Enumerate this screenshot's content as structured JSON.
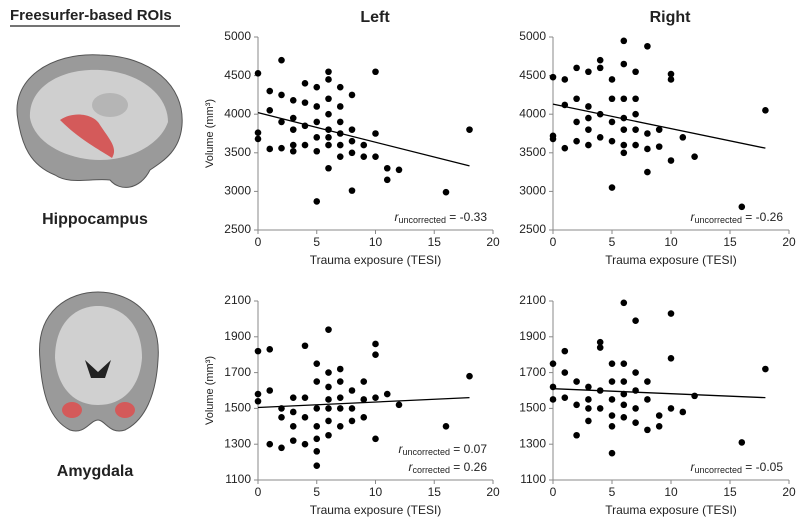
{
  "header": {
    "title": "Freesurfer-based ROIs"
  },
  "column_labels": [
    "Left",
    "Right"
  ],
  "row_labels": [
    "Hippocampus",
    "Amygdala"
  ],
  "chart_data": [
    {
      "type": "scatter",
      "xlabel": "Trauma exposure (TESI)",
      "ylabel": "Volume (mm³)",
      "color": "#000000",
      "xlim": [
        0,
        20
      ],
      "xticks": [
        0,
        5,
        10,
        15,
        20
      ],
      "ylim": [
        2500,
        5000
      ],
      "yticks": [
        2500,
        3000,
        3500,
        4000,
        4500,
        5000
      ],
      "x": [
        0,
        0,
        0,
        1,
        1,
        1,
        2,
        2,
        2,
        2,
        3,
        3,
        3,
        3,
        3,
        4,
        4,
        4,
        4,
        5,
        5,
        5,
        5,
        5,
        5,
        6,
        6,
        6,
        6,
        6,
        6,
        6,
        6,
        7,
        7,
        7,
        7,
        7,
        7,
        8,
        8,
        8,
        8,
        8,
        9,
        9,
        10,
        10,
        10,
        11,
        11,
        12,
        16,
        18
      ],
      "values": [
        4530,
        3760,
        3680,
        4300,
        4050,
        3550,
        4700,
        4250,
        3900,
        3560,
        4180,
        3950,
        3800,
        3600,
        3520,
        4400,
        4150,
        3850,
        3600,
        4350,
        4100,
        3900,
        3700,
        3520,
        2870,
        4550,
        4450,
        4200,
        4000,
        3800,
        3700,
        3600,
        3300,
        4350,
        4100,
        3900,
        3750,
        3600,
        3450,
        4250,
        3800,
        3650,
        3500,
        3010,
        3600,
        3450,
        4550,
        3750,
        3450,
        3150,
        3300,
        3280,
        2990,
        3800
      ],
      "fit": {
        "x": [
          0,
          18
        ],
        "y": [
          4020,
          3330
        ]
      },
      "annotations": [
        {
          "symbol": "r",
          "subscript": "uncorrected",
          "text": " = -0.33"
        }
      ]
    },
    {
      "type": "scatter",
      "xlabel": "Trauma exposure (TESI)",
      "color": "#000000",
      "xlim": [
        0,
        20
      ],
      "xticks": [
        0,
        5,
        10,
        15,
        20
      ],
      "ylim": [
        2500,
        5000
      ],
      "yticks": [
        2500,
        3000,
        3500,
        4000,
        4500,
        5000
      ],
      "x": [
        0,
        0,
        0,
        1,
        1,
        1,
        2,
        2,
        2,
        2,
        3,
        3,
        3,
        3,
        3,
        4,
        4,
        4,
        4,
        5,
        5,
        5,
        5,
        5,
        6,
        6,
        6,
        6,
        6,
        6,
        6,
        7,
        7,
        7,
        7,
        7,
        8,
        8,
        8,
        8,
        9,
        9,
        10,
        10,
        10,
        11,
        12,
        16,
        18
      ],
      "values": [
        4480,
        3720,
        3680,
        4450,
        4120,
        3560,
        4600,
        4200,
        3900,
        3650,
        4550,
        4100,
        3950,
        3800,
        3600,
        4700,
        4600,
        4000,
        3700,
        4450,
        4200,
        3900,
        3650,
        3050,
        4950,
        4650,
        4200,
        3950,
        3800,
        3600,
        3500,
        4550,
        4200,
        4000,
        3800,
        3600,
        4880,
        3750,
        3550,
        3250,
        3800,
        3580,
        4520,
        4450,
        3400,
        3700,
        3450,
        2800,
        4050
      ],
      "fit": {
        "x": [
          0,
          18
        ],
        "y": [
          4130,
          3560
        ]
      },
      "annotations": [
        {
          "symbol": "r",
          "subscript": "uncorrected",
          "text": " = -0.26"
        }
      ]
    },
    {
      "type": "scatter",
      "xlabel": "Trauma exposure (TESI)",
      "ylabel": "Volume (mm³)",
      "color": "#000000",
      "xlim": [
        0,
        20
      ],
      "xticks": [
        0,
        5,
        10,
        15,
        20
      ],
      "ylim": [
        1100,
        2100
      ],
      "yticks": [
        1100,
        1300,
        1500,
        1700,
        1900,
        2100
      ],
      "x": [
        0,
        0,
        0,
        1,
        1,
        1,
        2,
        2,
        2,
        3,
        3,
        3,
        3,
        4,
        4,
        4,
        4,
        5,
        5,
        5,
        5,
        5,
        5,
        5,
        6,
        6,
        6,
        6,
        6,
        6,
        6,
        7,
        7,
        7,
        7,
        7,
        8,
        8,
        8,
        9,
        9,
        9,
        10,
        10,
        10,
        10,
        11,
        12,
        16,
        18
      ],
      "values": [
        1820,
        1580,
        1540,
        1830,
        1600,
        1300,
        1500,
        1450,
        1280,
        1560,
        1480,
        1400,
        1320,
        1850,
        1560,
        1450,
        1300,
        1750,
        1650,
        1500,
        1400,
        1330,
        1260,
        1180,
        1940,
        1700,
        1620,
        1550,
        1500,
        1430,
        1350,
        1720,
        1650,
        1560,
        1500,
        1400,
        1600,
        1500,
        1430,
        1650,
        1550,
        1450,
        1860,
        1800,
        1560,
        1330,
        1580,
        1520,
        1400,
        1680
      ],
      "fit": {
        "x": [
          0,
          18
        ],
        "y": [
          1505,
          1560
        ]
      },
      "annotations": [
        {
          "symbol": "r",
          "subscript": "uncorrected",
          "text": " = 0.07"
        },
        {
          "symbol": "r",
          "subscript": "corrected",
          "text": " = 0.26"
        }
      ]
    },
    {
      "type": "scatter",
      "xlabel": "Trauma exposure (TESI)",
      "color": "#000000",
      "xlim": [
        0,
        20
      ],
      "xticks": [
        0,
        5,
        10,
        15,
        20
      ],
      "ylim": [
        1100,
        2100
      ],
      "yticks": [
        1100,
        1300,
        1500,
        1700,
        1900,
        2100
      ],
      "x": [
        0,
        0,
        0,
        1,
        1,
        1,
        2,
        2,
        2,
        3,
        3,
        3,
        3,
        4,
        4,
        4,
        4,
        5,
        5,
        5,
        5,
        5,
        5,
        6,
        6,
        6,
        6,
        6,
        6,
        7,
        7,
        7,
        7,
        7,
        8,
        8,
        8,
        9,
        9,
        10,
        10,
        10,
        11,
        12,
        16,
        18
      ],
      "values": [
        1750,
        1620,
        1550,
        1820,
        1700,
        1560,
        1650,
        1520,
        1350,
        1620,
        1550,
        1500,
        1430,
        1870,
        1840,
        1600,
        1500,
        1750,
        1650,
        1550,
        1460,
        1400,
        1250,
        2090,
        1750,
        1650,
        1580,
        1520,
        1450,
        1990,
        1700,
        1600,
        1500,
        1420,
        1650,
        1550,
        1380,
        1460,
        1400,
        2030,
        1780,
        1500,
        1480,
        1570,
        1310,
        1720
      ],
      "fit": {
        "x": [
          0,
          18
        ],
        "y": [
          1610,
          1560
        ]
      },
      "annotations": [
        {
          "symbol": "r",
          "subscript": "uncorrected",
          "text": " = -0.05"
        }
      ]
    }
  ]
}
